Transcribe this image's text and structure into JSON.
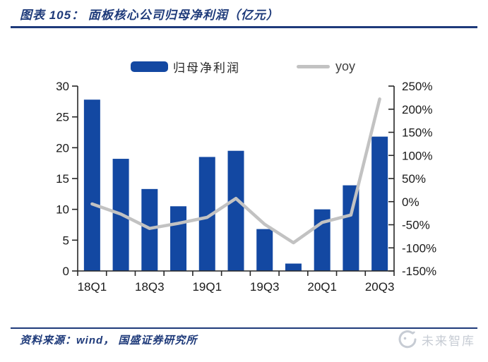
{
  "header": {
    "title": "图表 105：  面板核心公司归母净利润（亿元）"
  },
  "legend": {
    "items": [
      {
        "label": "归母净利润",
        "marker": "bar-swatch"
      },
      {
        "label": "yoy",
        "marker": "line-swatch"
      }
    ]
  },
  "chart_data": {
    "type": "bar+line",
    "categories": [
      "18Q1",
      "18Q2",
      "18Q3",
      "18Q4",
      "19Q1",
      "19Q2",
      "19Q3",
      "19Q4",
      "20Q1",
      "20Q2",
      "20Q3"
    ],
    "series": [
      {
        "name": "归母净利润",
        "type": "bar",
        "axis": "left",
        "values": [
          27.8,
          18.2,
          13.3,
          10.5,
          18.5,
          19.5,
          6.8,
          1.2,
          10.0,
          13.9,
          21.8
        ]
      },
      {
        "name": "yoy",
        "type": "line",
        "axis": "right",
        "values": [
          -5,
          -27,
          -58,
          -47,
          -34,
          7,
          -49,
          -89,
          -45,
          -29,
          222
        ]
      }
    ],
    "left_axis": {
      "min": 0,
      "max": 30,
      "step": 5,
      "tick_labels": [
        "0",
        "5",
        "10",
        "15",
        "20",
        "25",
        "30"
      ]
    },
    "right_axis": {
      "min": -150,
      "max": 250,
      "step": 50,
      "tick_labels": [
        "-150%",
        "-100%",
        "-50%",
        "0%",
        "50%",
        "100%",
        "150%",
        "200%",
        "250%"
      ]
    },
    "x_tick_labels": [
      {
        "category_index": 0,
        "label": "18Q1"
      },
      {
        "category_index": 2,
        "label": "18Q3"
      },
      {
        "category_index": 4,
        "label": "19Q1"
      },
      {
        "category_index": 6,
        "label": "19Q3"
      },
      {
        "category_index": 8,
        "label": "20Q1"
      },
      {
        "category_index": 10,
        "label": "20Q3"
      }
    ],
    "grid": "off",
    "legend_position": "top",
    "colors": {
      "bar": "#1348A2",
      "line": "#C2C2C2",
      "axis": "#262626",
      "axis_text": "#1A1A1A"
    }
  },
  "footer": {
    "source": "资料来源：wind， 国盛证券研究所",
    "brand": "未来智库"
  },
  "theme": {
    "navy": "#1E3A7A",
    "brand_gray": "#C7CCD4"
  }
}
